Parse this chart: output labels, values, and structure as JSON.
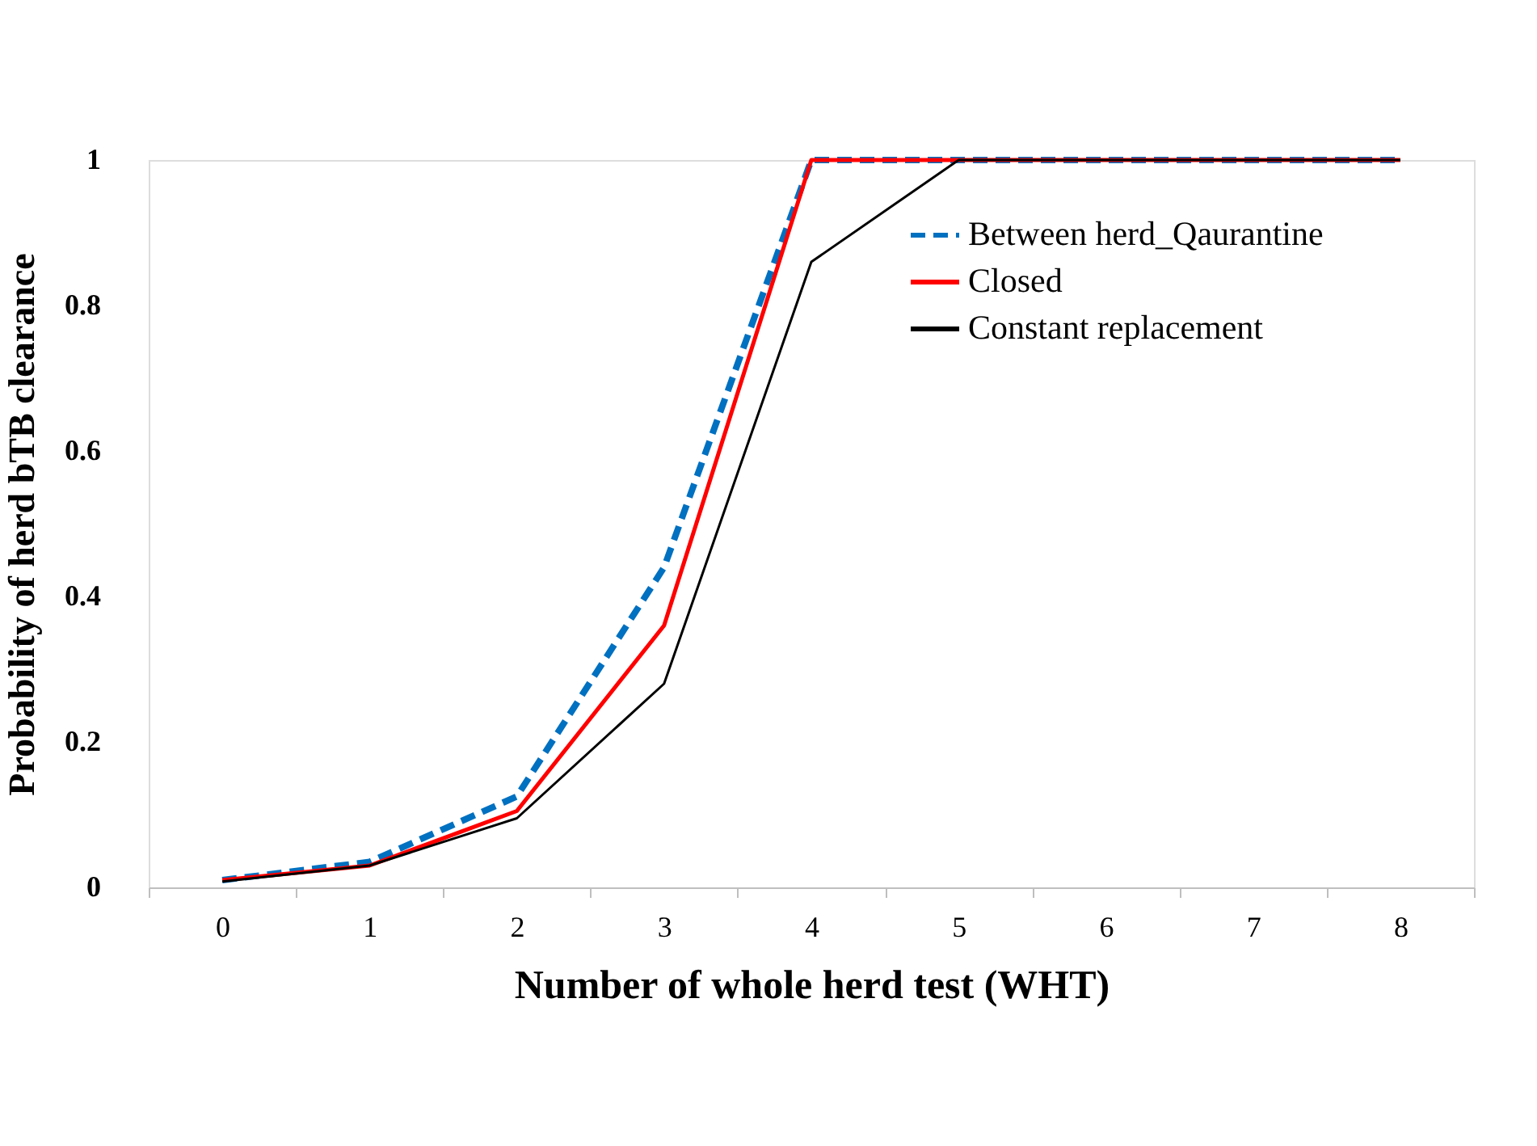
{
  "chart_data": {
    "type": "line",
    "xlabel": "Number of whole herd test (WHT)",
    "ylabel": "Probability of herd bTB clearance",
    "categories": [
      "0",
      "1",
      "2",
      "3",
      "4",
      "5",
      "6",
      "7",
      "8"
    ],
    "series": [
      {
        "name": "Between herd_Qaurantine",
        "color": "#0070c0",
        "line_style": "dashed",
        "values": [
          0.01,
          0.035,
          0.125,
          0.44,
          1,
          1,
          1,
          1,
          1
        ]
      },
      {
        "name": "Closed",
        "color": "#ff0000",
        "line_style": "solid",
        "values": [
          0.01,
          0.03,
          0.105,
          0.36,
          1,
          1,
          1,
          1,
          1
        ]
      },
      {
        "name": "Constant replacement",
        "color": "#000000",
        "line_style": "solid",
        "values": [
          0.008,
          0.03,
          0.095,
          0.28,
          0.86,
          1,
          1,
          1,
          1
        ]
      }
    ],
    "ylim": [
      0,
      1
    ],
    "yticks": [
      0,
      0.2,
      0.4,
      0.6,
      0.8,
      1
    ],
    "grid": false,
    "legend": "top right",
    "marker": "none"
  }
}
